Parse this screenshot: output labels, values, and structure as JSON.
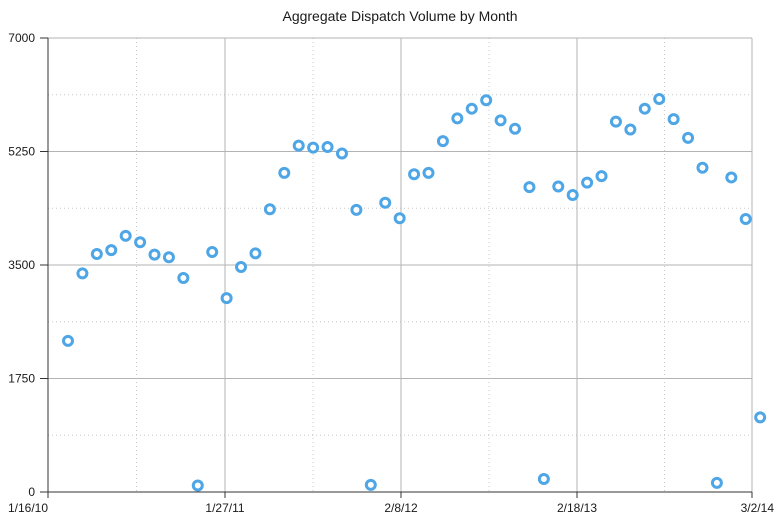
{
  "chart_data": {
    "type": "scatter",
    "title": "Aggregate Dispatch Volume by Month",
    "xlabel": "",
    "ylabel": "",
    "x_tick_labels": [
      "1/16/10",
      "1/27/11",
      "2/8/12",
      "2/18/13",
      "3/2/14"
    ],
    "y_tick_labels": [
      "0",
      "1750",
      "3500",
      "5250",
      "7000"
    ],
    "ylim": [
      0,
      7000
    ],
    "grid": true,
    "legend": "none",
    "colors": {
      "marker": "#4ea6e6"
    },
    "series": [
      {
        "values": [
          2330,
          3370,
          3670,
          3730,
          3950,
          3850,
          3660,
          3620,
          3300,
          100,
          3700,
          2990,
          3470,
          3680,
          4360,
          4920,
          5340,
          5310,
          5320,
          5220,
          4350,
          110,
          4460,
          4220,
          4900,
          4920,
          5410,
          5760,
          5910,
          6040,
          5730,
          5600,
          4700,
          200,
          4710,
          4580,
          4770,
          4870,
          5710,
          5590,
          5910,
          6060,
          5750,
          5460,
          5000,
          140,
          4850,
          4210,
          1150
        ]
      }
    ]
  }
}
